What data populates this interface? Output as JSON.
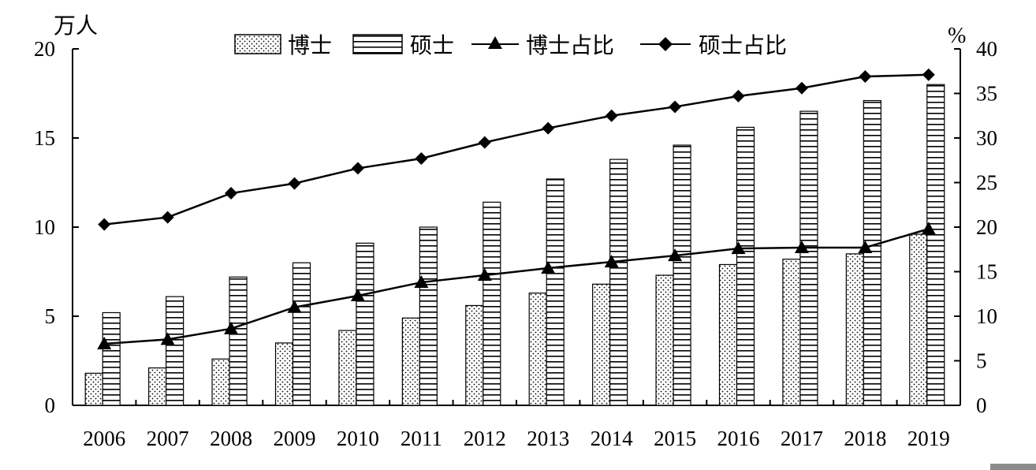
{
  "chart_data": {
    "type": "bar",
    "categories": [
      "2006",
      "2007",
      "2008",
      "2009",
      "2010",
      "2011",
      "2012",
      "2013",
      "2014",
      "2015",
      "2016",
      "2017",
      "2018",
      "2019"
    ],
    "left_axis": {
      "unit_label": "万人",
      "min": 0,
      "max": 20,
      "ticks": [
        "0",
        "5",
        "10",
        "15",
        "20"
      ]
    },
    "right_axis": {
      "unit_label": "%",
      "min": 0,
      "max": 40,
      "ticks": [
        "0",
        "5",
        "10",
        "15",
        "20",
        "25",
        "30",
        "35",
        "40"
      ]
    },
    "series": [
      {
        "name": "博士",
        "type": "bar",
        "axis": "left",
        "pattern": "dots",
        "values": [
          1.8,
          2.1,
          2.6,
          3.5,
          4.2,
          4.9,
          5.6,
          6.3,
          6.8,
          7.3,
          7.9,
          8.2,
          8.5,
          9.6
        ]
      },
      {
        "name": "硕士",
        "type": "bar",
        "axis": "left",
        "pattern": "horizontal-lines",
        "values": [
          5.2,
          6.1,
          7.2,
          8.0,
          9.1,
          10.0,
          11.4,
          12.7,
          13.8,
          14.6,
          15.6,
          16.5,
          17.1,
          18.0
        ]
      },
      {
        "name": "博士占比",
        "type": "line",
        "axis": "right",
        "marker": "triangle",
        "values": [
          6.9,
          7.4,
          8.6,
          11.0,
          12.3,
          13.8,
          14.6,
          15.4,
          16.1,
          16.8,
          17.6,
          17.7,
          17.7,
          19.8
        ]
      },
      {
        "name": "硕士占比",
        "type": "line",
        "axis": "right",
        "marker": "diamond",
        "values": [
          20.3,
          21.1,
          23.8,
          24.9,
          26.6,
          27.7,
          29.5,
          31.1,
          32.5,
          33.5,
          34.7,
          35.6,
          36.9,
          37.1
        ]
      }
    ],
    "legend_position": "top",
    "grid": false
  }
}
